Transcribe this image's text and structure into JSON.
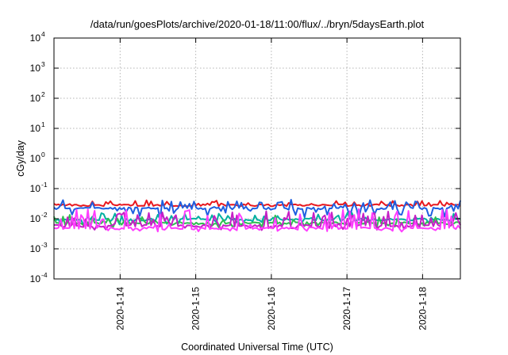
{
  "chart_data": {
    "type": "line",
    "title": "/data/run/goesPlots/archive/2020-01-18/11:00/flux/../bryn/5daysEarth.plot",
    "xlabel": "Coordinated Universal Time (UTC)",
    "ylabel": "cGy/day",
    "yscale": "log",
    "ylim": [
      0.0001,
      10000
    ],
    "xlim": [
      "2020-01-13T03:00",
      "2020-01-18T12:00"
    ],
    "grid": true,
    "legend": "none",
    "x_ticks": [
      "2020-1-14",
      "2020-1-15",
      "2020-1-16",
      "2020-1-17",
      "2020-1-18"
    ],
    "y_ticks": [
      {
        "base": "10",
        "exp": "-4",
        "value": 0.0001
      },
      {
        "base": "10",
        "exp": "-3",
        "value": 0.001
      },
      {
        "base": "10",
        "exp": "-2",
        "value": 0.01
      },
      {
        "base": "10",
        "exp": "-1",
        "value": 0.1
      },
      {
        "base": "10",
        "exp": "0",
        "value": 1
      },
      {
        "base": "10",
        "exp": "1",
        "value": 10
      },
      {
        "base": "10",
        "exp": "2",
        "value": 100
      },
      {
        "base": "10",
        "exp": "3",
        "value": 1000
      },
      {
        "base": "10",
        "exp": "4",
        "value": 10000
      }
    ],
    "series": [
      {
        "color": "#e8181f",
        "base": 0.028,
        "spike": 0.012,
        "dip": 0.0,
        "seed": 3
      },
      {
        "color": "#1f5fe0",
        "base": 0.022,
        "spike": 0.02,
        "dip": 0.012,
        "seed": 11
      },
      {
        "color": "#00b0a0",
        "base": 0.0095,
        "spike": 0.006,
        "dip": 0.003,
        "seed": 17
      },
      {
        "color": "#2fbf50",
        "base": 0.0072,
        "spike": 0.006,
        "dip": 0.002,
        "seed": 23
      },
      {
        "color": "#c61fc6",
        "base": 0.0058,
        "spike": 0.012,
        "dip": 0.0015,
        "seed": 29
      },
      {
        "color": "#ff3dff",
        "base": 0.0048,
        "spike": 0.016,
        "dip": 0.001,
        "seed": 31
      }
    ]
  }
}
